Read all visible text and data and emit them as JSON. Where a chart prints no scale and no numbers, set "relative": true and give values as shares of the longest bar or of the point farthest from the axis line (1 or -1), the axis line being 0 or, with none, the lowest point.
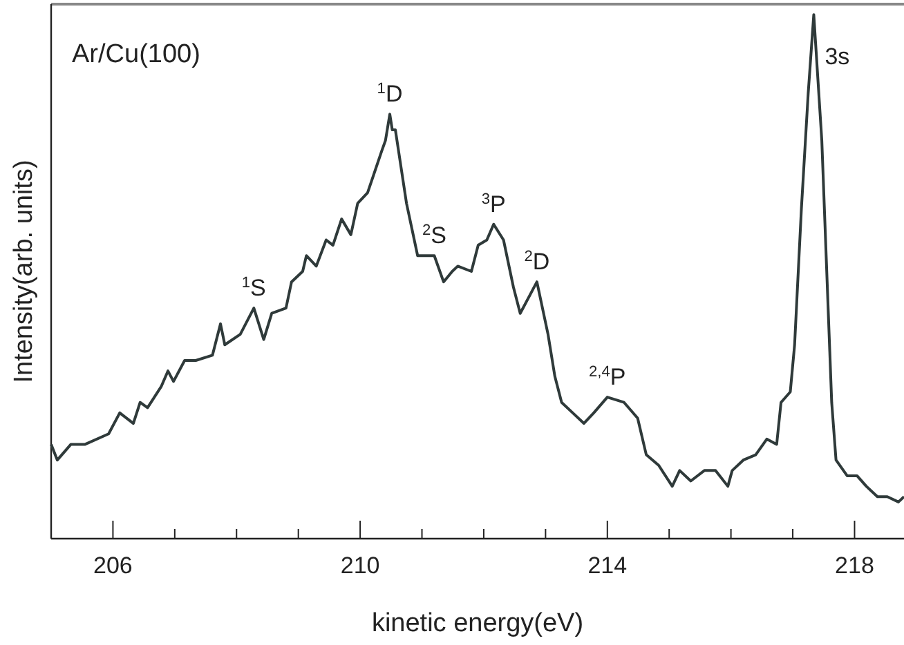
{
  "chart_data": {
    "type": "line",
    "title": "Ar/Cu(100)",
    "xlabel": "kinetic energy(eV)",
    "ylabel": "Intensity(arb. units)",
    "relative": true,
    "xlim": [
      205,
      218.8
    ],
    "xticks": [
      {
        "value": 205,
        "label": null
      },
      206,
      {
        "value": 207,
        "label": null
      },
      {
        "value": 208,
        "label": null
      },
      {
        "value": 209,
        "label": null
      },
      210,
      {
        "value": 211,
        "label": null
      },
      {
        "value": 212,
        "label": null
      },
      {
        "value": 213,
        "label": null
      },
      214,
      {
        "value": 215,
        "label": null
      },
      {
        "value": 216,
        "label": null
      },
      {
        "value": 217,
        "label": null
      },
      218
    ],
    "tick_labels": "x",
    "grid": false,
    "marker": "none",
    "line_style": "solid",
    "series": [
      {
        "color": "#2f3a3a",
        "x": [
          205.0,
          205.1,
          205.32,
          205.55,
          205.93,
          206.11,
          206.33,
          206.44,
          206.56,
          206.78,
          206.89,
          206.98,
          207.16,
          207.34,
          207.61,
          207.74,
          207.81,
          208.06,
          208.28,
          208.44,
          208.57,
          208.8,
          208.89,
          209.07,
          209.13,
          209.29,
          209.45,
          209.56,
          209.7,
          209.85,
          209.96,
          210.12,
          210.35,
          210.41,
          210.48,
          210.52,
          210.57,
          210.75,
          210.93,
          211.2,
          211.35,
          211.49,
          211.58,
          211.8,
          211.91,
          212.05,
          212.16,
          212.32,
          212.48,
          212.59,
          212.77,
          212.86,
          213.04,
          213.15,
          213.26,
          213.44,
          213.62,
          213.78,
          214.0,
          214.27,
          214.49,
          214.63,
          214.83,
          215.05,
          215.17,
          215.35,
          215.57,
          215.75,
          215.95,
          216.02,
          216.2,
          216.4,
          216.58,
          216.74,
          216.81,
          216.96,
          217.03,
          217.14,
          217.25,
          217.34,
          217.47,
          217.63,
          217.7,
          217.88,
          218.04,
          218.19,
          218.37,
          218.53,
          218.71,
          218.8
        ],
        "values": [
          0.18,
          0.15,
          0.18,
          0.18,
          0.2,
          0.24,
          0.22,
          0.26,
          0.25,
          0.29,
          0.32,
          0.3,
          0.34,
          0.34,
          0.35,
          0.41,
          0.37,
          0.39,
          0.44,
          0.38,
          0.43,
          0.44,
          0.49,
          0.51,
          0.54,
          0.52,
          0.57,
          0.56,
          0.61,
          0.58,
          0.64,
          0.66,
          0.74,
          0.76,
          0.81,
          0.78,
          0.78,
          0.64,
          0.54,
          0.54,
          0.49,
          0.51,
          0.52,
          0.51,
          0.56,
          0.57,
          0.6,
          0.57,
          0.48,
          0.43,
          0.47,
          0.49,
          0.39,
          0.31,
          0.26,
          0.24,
          0.22,
          0.24,
          0.27,
          0.26,
          0.23,
          0.16,
          0.14,
          0.1,
          0.13,
          0.11,
          0.13,
          0.13,
          0.1,
          0.13,
          0.15,
          0.16,
          0.19,
          0.18,
          0.26,
          0.28,
          0.37,
          0.63,
          0.85,
          1,
          0.76,
          0.26,
          0.15,
          0.12,
          0.12,
          0.1,
          0.08,
          0.08,
          0.07,
          0.08
        ]
      }
    ],
    "annotations": [
      {
        "text": "$^{1}$S",
        "x": 208.28,
        "y": 0.44
      },
      {
        "text": "$^{1}$D",
        "x": 210.48,
        "y": 0.81
      },
      {
        "text": "$^{2}$S",
        "x": 211.2,
        "y": 0.54
      },
      {
        "text": "$^{3}$P",
        "x": 212.16,
        "y": 0.6
      },
      {
        "text": "$^{2}$D",
        "x": 212.86,
        "y": 0.49
      },
      {
        "text": "$^{2,4}$P",
        "x": 214.0,
        "y": 0.27
      },
      {
        "text": "3s",
        "x": 217.34,
        "y": 1
      }
    ]
  }
}
